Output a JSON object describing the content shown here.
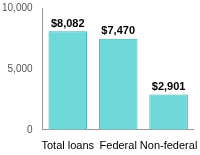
{
  "chart_data": {
    "type": "bar",
    "categories": [
      "Total loans",
      "Federal",
      "Non-federal"
    ],
    "values": [
      8082,
      7470,
      2901
    ],
    "value_labels": [
      "$8,082",
      "$7,470",
      "$2,901"
    ],
    "data_labels": true,
    "color": "#6fd8d8",
    "ylim": [
      0,
      10000
    ],
    "yticks": [
      0,
      {
        "value": 5000,
        "label": "5,000"
      },
      {
        "value": 10000,
        "label": "10,000"
      }
    ],
    "grid": false
  }
}
